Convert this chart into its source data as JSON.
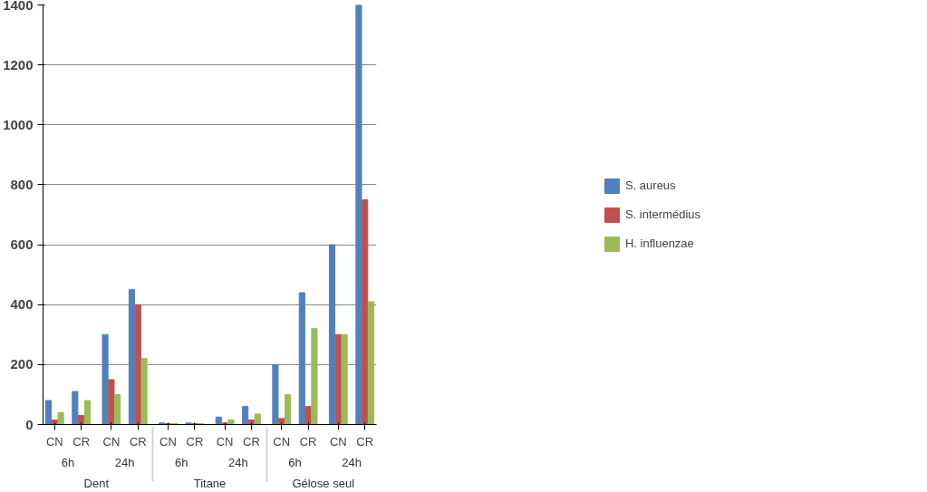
{
  "chart_data": {
    "type": "bar",
    "categories": [
      "CN",
      "CR",
      "CN",
      "CR",
      "CN",
      "CR",
      "CN",
      "CR",
      "CN",
      "CR",
      "CN",
      "CR"
    ],
    "annotations": [
      "6h",
      "24h",
      "6h",
      "24h",
      "6h",
      "24h",
      "Dent",
      "Titane",
      "Gélose seul"
    ],
    "series": [
      {
        "name": "S. aureus",
        "color": "#4f81bd",
        "values": [
          80,
          110,
          300,
          450,
          5,
          5,
          25,
          60,
          200,
          440,
          600,
          1400
        ]
      },
      {
        "name": "S. intermédius",
        "color": "#c0504d",
        "values": [
          15,
          30,
          150,
          400,
          3,
          3,
          5,
          15,
          20,
          60,
          300,
          750
        ]
      },
      {
        "name": "H. influenzae",
        "color": "#9bbb59",
        "values": [
          40,
          80,
          100,
          220,
          3,
          3,
          15,
          35,
          100,
          320,
          300,
          410
        ]
      }
    ],
    "ylim": [
      0,
      1400
    ],
    "yticks": [
      0,
      200,
      400,
      600,
      800,
      1000,
      1200,
      1400
    ],
    "grid": "y",
    "legend": "right"
  }
}
